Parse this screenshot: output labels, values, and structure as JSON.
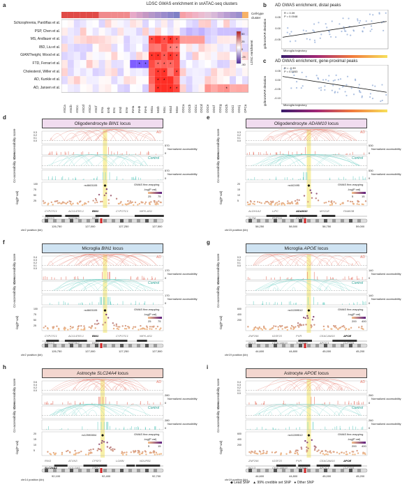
{
  "panel_a": {
    "letter": "a",
    "title": "LDSC GWAS enrichment in snATAC-seq clusters",
    "traits": [
      "Schizophrenia, Pardiñas et al.",
      "PSP, Chen et al.",
      "MS, Andlauer et al.",
      "IBD, Liu et al.",
      "GIANTheight, Wood et al.",
      "FTD, Ferrari et al.",
      "Cholesterol, Willer et al.",
      "AD, Kunkle et al.",
      "AD, Jansen et al."
    ],
    "clusters": [
      "ASCa",
      "ASCb",
      "ASCc",
      "ASCd",
      "ASCe",
      "ASCf",
      "EXa",
      "EXb",
      "EXc",
      "EXd",
      "EXe",
      "INHa",
      "INHb",
      "INHc",
      "MGa",
      "MGb",
      "MGc",
      "MGd",
      "MGe",
      "ODCa",
      "ODCb",
      "ODCc",
      "ODCd",
      "ODCe",
      "ODCf",
      "ODCg",
      "ODCh",
      "ODCi",
      "ODCj",
      "OPCa"
    ],
    "legend_title": "Cell-type cluster",
    "colorbar_title": "LDSC enrichment",
    "colorbar_ticks": [
      "50",
      "25",
      "0",
      "-25",
      "-50"
    ]
  },
  "panel_b": {
    "letter": "b",
    "title": "AD GWAS enrichment, distal peaks",
    "stats": [
      "R = 0.39",
      "P = 0.0048"
    ],
    "ylabel": "gchromVAR deviation",
    "yticks": [
      "0.05",
      "0.00",
      "-0.05"
    ],
    "xlabel": "Microglia trajectory"
  },
  "panel_c": {
    "letter": "c",
    "title": "AD GWAS enrichment, gene-proximal peaks",
    "stats": [
      "R = -0.39",
      "P = 0.0053"
    ],
    "ylabel": "gchromVAR deviation",
    "yticks": [
      "0.05",
      "0.00",
      "-0.05",
      "-0.10"
    ],
    "xlabel": "Microglia trajectory"
  },
  "common": {
    "coacc": "Co-accessibility score",
    "normacc": "Normalized accessibility",
    "gwas": "GWAS fine-mapping",
    "logp": "-log(P val)",
    "cond_ad": "AD",
    "cond_ctrl": "Control",
    "cbar_lab": "-log(P val)"
  },
  "panel_d": {
    "letter": "d",
    "cell": "Oligodendrocyte",
    "gene": "BIN1",
    "suffix": "locus",
    "acc": "570",
    "snp": "rs4663105",
    "axis": "chr2 position (kb)",
    "pticks": [
      "126,750",
      "127,000",
      "127,250",
      "127,500"
    ],
    "cticks": [
      "25",
      "75"
    ],
    "genes": [
      "CYP27C1",
      "AC114783.1",
      "BIN1",
      "CYP27C1",
      "NIFK-AS1",
      "ERCC3",
      "MAP3K2",
      "IWS1"
    ],
    "cotick": [
      "0.3",
      "0.2",
      "0.1",
      "0.0"
    ],
    "pyt": [
      "100",
      "75",
      "50",
      "25"
    ]
  },
  "panel_e": {
    "letter": "e",
    "cell": "Oligodendrocyte",
    "gene": "ADAM10",
    "suffix": "locus",
    "acc": "530",
    "snp": "rs442495",
    "axis": "chr15 position (kb)",
    "pticks": [
      "58,250",
      "58,500",
      "58,750",
      "59,000"
    ],
    "cticks": [
      "5",
      "15"
    ],
    "genes": [
      "ALDH1A2",
      "LIPC",
      "ADAM10",
      "MYO1E",
      "FAM63B",
      "SLTM",
      "RNF111",
      "CCNB2"
    ],
    "cotick": [
      "0.3",
      "0.2",
      "0.1",
      "0.0"
    ],
    "pyt": [
      "20",
      "15",
      "10",
      "5"
    ]
  },
  "panel_f": {
    "letter": "f",
    "cell": "Microglia",
    "gene": "BIN1",
    "suffix": "locus",
    "acc": "170",
    "snp": "rs4663105",
    "axis": "chr2 position (kb)",
    "pticks": [
      "126,750",
      "127,000",
      "127,250",
      "127,500"
    ],
    "cticks": [
      "25",
      "75"
    ],
    "genes": [
      "CYP27C1",
      "AC114783.1",
      "BIN1",
      "CYP27C1",
      "NIFK-AS1",
      "ERCC3",
      "MAP3K2",
      "IWS1"
    ],
    "cotick": [
      "0.4",
      "0.3",
      "0.2",
      "0.1",
      "0.0"
    ],
    "pyt": [
      "100",
      "75",
      "50",
      "25"
    ]
  },
  "panel_g": {
    "letter": "g",
    "cell": "Microglia",
    "gene": "APOE",
    "suffix": "locus",
    "acc": "140",
    "snp": "rs41289512",
    "axis": "chr19 position (kb)",
    "pticks": [
      "44,600",
      "44,800",
      "45,000",
      "45,200"
    ],
    "cticks": [
      "200",
      "400"
    ],
    "genes": [
      "ZNF296",
      "IGSF23",
      "PVR",
      "CEACAM16",
      "APOE",
      "BCL3",
      "CEACAM19",
      "TOMM40",
      "APOC1",
      "CLPTM1"
    ],
    "cotick": [
      "0.3",
      "0.2",
      "0.1",
      "0.0"
    ],
    "pyt": [
      "600",
      "400",
      "200"
    ]
  },
  "panel_h": {
    "letter": "h",
    "cell": "Astrocyte",
    "gene": "SLC24A4",
    "suffix": "locus",
    "acc": "280",
    "snp": "rs12590654",
    "axis": "chr14 position (kb)",
    "pticks": [
      "92,100",
      "92,400",
      "92,700"
    ],
    "cticks": [
      "5",
      "15"
    ],
    "genes": [
      "RIN3",
      "ATXN3",
      "CPSF2",
      "LGMN",
      "NDUFB1",
      "SLC24A4",
      "GOLGA5",
      "ITPK1"
    ],
    "cotick": [
      "0.6",
      "0.4",
      "0.2",
      "0.0"
    ],
    "pyt": [
      "20",
      "15",
      "10",
      "5"
    ]
  },
  "panel_i": {
    "letter": "i",
    "cell": "Astrocyte",
    "gene": "APOE",
    "suffix": "locus",
    "acc": "260",
    "snp": "rs41289512",
    "axis": "chr19 position (kb)",
    "pticks": [
      "44,600",
      "44,800",
      "45,000",
      "45,200"
    ],
    "cticks": [
      "200",
      "400"
    ],
    "genes": [
      "ZNF296",
      "IGSF23",
      "PVR",
      "CEACAM16",
      "APOE",
      "BCL3",
      "CEACAM19",
      "TOMM40",
      "APOC1",
      "CLPTM1"
    ],
    "cotick": [
      "0.4",
      "0.3",
      "0.2",
      "0.1",
      "0.0"
    ],
    "pyt": [
      "600",
      "400",
      "200"
    ]
  },
  "legend": {
    "items": [
      "Lead SNP",
      "99% credible set SNP",
      "Other SNP"
    ]
  },
  "colors": {
    "ad": "#e8796a",
    "ctrl": "#6fd0c6",
    "highlight": "#f7ee9e",
    "snp_low": "#f6c08a",
    "snp_high": "#5d1e7e"
  }
}
